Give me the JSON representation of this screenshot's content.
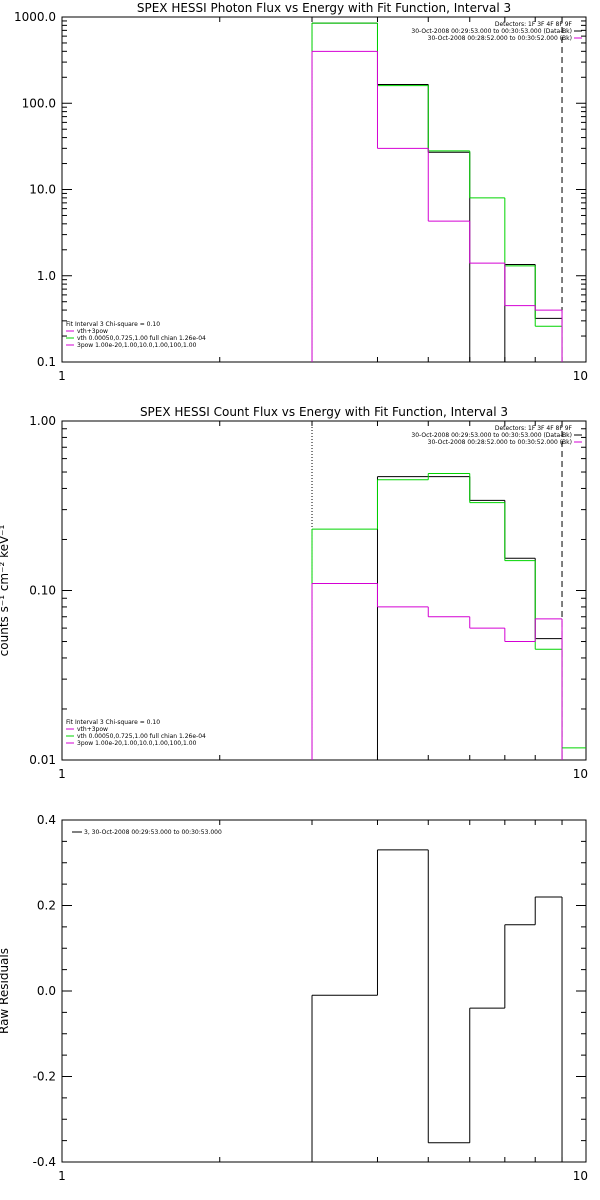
{
  "colors": {
    "black": "#000000",
    "magenta": "#d400d4",
    "green": "#00d400"
  },
  "chart_data": [
    {
      "type": "line",
      "step": true,
      "title": "SPEX HESSI Photon Flux vs Energy with Fit Function, Interval 3",
      "xscale": "log",
      "yscale": "log",
      "xlim": [
        1,
        10
      ],
      "ylim": [
        0.1,
        1000
      ],
      "xticks": [
        {
          "v": 1,
          "label": "1"
        },
        {
          "v": 10,
          "label": "10"
        }
      ],
      "yticks": [
        {
          "v": 0.1,
          "label": "0.1"
        },
        {
          "v": 1,
          "label": "1.0"
        },
        {
          "v": 10,
          "label": "10.0"
        },
        {
          "v": 100,
          "label": "100.0"
        },
        {
          "v": 1000,
          "label": "1000.0"
        }
      ],
      "legend_top": [
        "Detectors: 1F 3F 4F 8F 9F",
        "30-Oct-2008 00:29:53.000 to 00:30:53.000 (Data-Bk)",
        "30-Oct-2008 00:28:52.000 to 00:30:52.000 (Bk)"
      ],
      "legend_bottom": [
        "Fit Interval 3   Chi-square = 0.10",
        "vth+3pow",
        "vth 0.00050,0.725,1.00  full chian 1.26e-04",
        "3pow 1.00e-20,1.00,10.0,1.00,100,1.00"
      ],
      "vlines": [
        {
          "x": 3.0,
          "style": "dotted"
        },
        {
          "x": 9.0,
          "style": "dashed"
        }
      ],
      "edges": [
        3.0,
        4.0,
        5.0,
        6.0,
        7.0,
        8.0,
        9.0
      ],
      "series": [
        {
          "color": "black",
          "values": [
            850,
            165,
            27,
            null,
            1.35,
            0.32
          ]
        },
        {
          "color": "green",
          "values": [
            850,
            160,
            28,
            8,
            1.3,
            0.26
          ]
        },
        {
          "color": "magenta",
          "values": [
            400,
            30,
            4.3,
            1.4,
            0.45,
            0.4
          ]
        }
      ]
    },
    {
      "type": "line",
      "step": true,
      "title": "SPEX HESSI Count Flux vs Energy with Fit Function, Interval 3",
      "ylabel": "counts s⁻¹ cm⁻² keV⁻¹",
      "xscale": "log",
      "yscale": "log",
      "xlim": [
        1,
        10
      ],
      "ylim": [
        0.01,
        1
      ],
      "xticks": [
        {
          "v": 1,
          "label": "1"
        },
        {
          "v": 10,
          "label": "10"
        }
      ],
      "yticks": [
        {
          "v": 0.01,
          "label": "0.01"
        },
        {
          "v": 0.1,
          "label": "0.10"
        },
        {
          "v": 1,
          "label": "1.00"
        }
      ],
      "legend_top": [
        "Detectors: 1F 3F 4F 8F 9F",
        "30-Oct-2008 00:29:53.000 to 00:30:53.000 (Data-Bk)",
        "30-Oct-2008 00:28:52.000 to 00:30:52.000 (Bk)"
      ],
      "legend_bottom": [
        "Fit Interval 3   Chi-square = 0.10",
        "vth+3pow",
        "vth 0.00050,0.725,1.00  full chian 1.26e-04",
        "3pow 1.00e-20,1.00,10.0,1.00,100,1.00"
      ],
      "vlines": [
        {
          "x": 3.0,
          "style": "dotted"
        },
        {
          "x": 9.0,
          "style": "dashed"
        }
      ],
      "edges": [
        3.0,
        4.0,
        5.0,
        6.0,
        7.0,
        8.0,
        9.0
      ],
      "series": [
        {
          "color": "black",
          "values": [
            null,
            0.47,
            0.47,
            0.34,
            0.155,
            0.052
          ]
        },
        {
          "color": "green",
          "values": [
            0.23,
            0.45,
            0.49,
            0.33,
            0.15,
            0.045
          ]
        },
        {
          "color": "magenta",
          "values": [
            0.11,
            0.08,
            0.07,
            0.06,
            0.05,
            0.068
          ]
        }
      ],
      "tail": {
        "color": "green",
        "x": [
          9.0,
          10.0
        ],
        "value": 0.0118
      }
    },
    {
      "type": "line",
      "step": true,
      "ylabel": "Raw Residuals",
      "xscale": "log",
      "yscale": "linear",
      "xlim": [
        1,
        10
      ],
      "ylim": [
        -0.4,
        0.4
      ],
      "xticks": [
        {
          "v": 1,
          "label": "1"
        },
        {
          "v": 10,
          "label": "10"
        }
      ],
      "yticks": [
        {
          "v": -0.4,
          "label": "-0.4"
        },
        {
          "v": -0.2,
          "label": "-0.2"
        },
        {
          "v": 0.0,
          "label": "0.0"
        },
        {
          "v": 0.2,
          "label": "0.2"
        },
        {
          "v": 0.4,
          "label": "0.4"
        }
      ],
      "legend_top": [
        "3, 30-Oct-2008 00:29:53.000 to 00:30:53.000"
      ],
      "edges": [
        3.0,
        4.0,
        5.0,
        6.0,
        7.0,
        8.0,
        9.0
      ],
      "series": [
        {
          "color": "black",
          "values": [
            -0.01,
            0.33,
            -0.355,
            -0.04,
            0.155,
            0.22
          ]
        }
      ]
    }
  ]
}
